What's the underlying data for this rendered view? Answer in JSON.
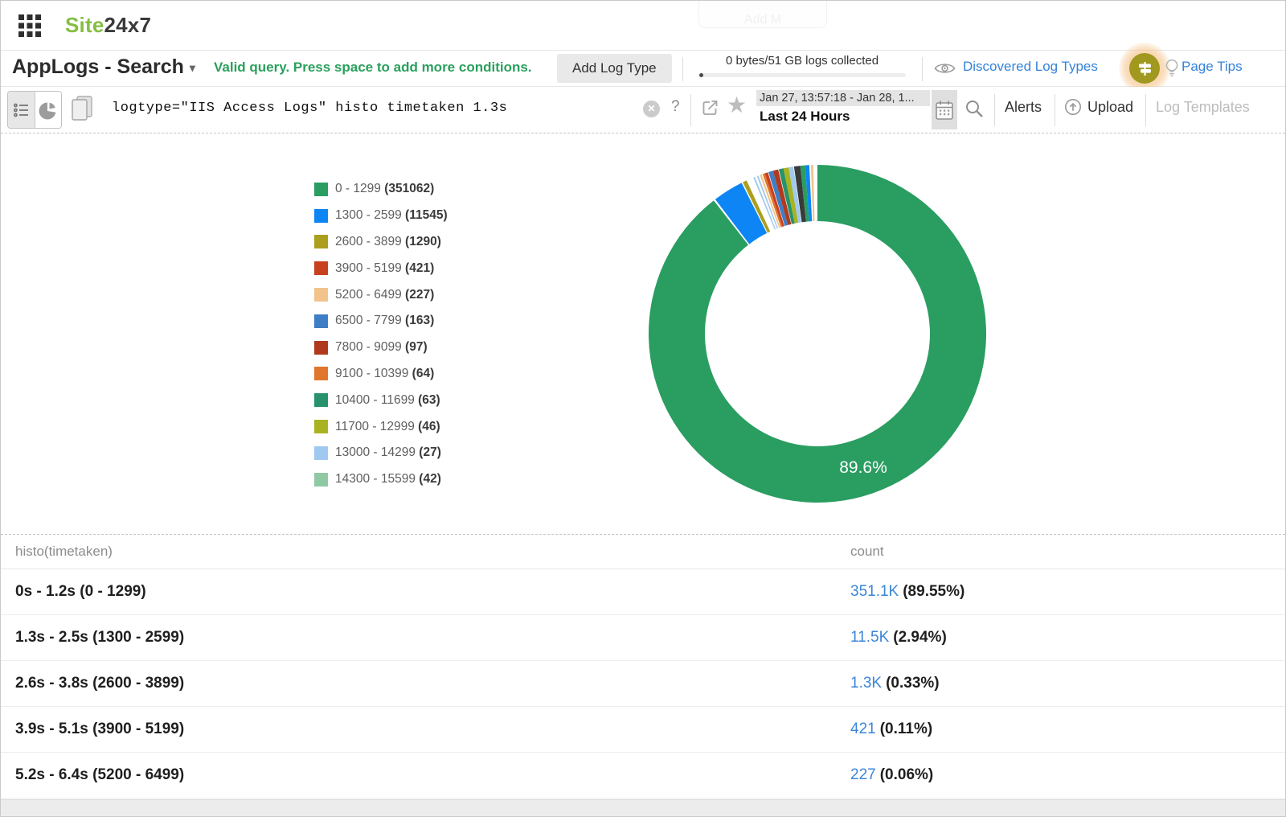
{
  "colors": {
    "brand_green": "#84bf41",
    "accent_blue": "#3584d7",
    "status_green": "#2aa05c",
    "count_link_blue": "#3a86d8"
  },
  "header": {
    "logo_part1": "Site",
    "logo_part2": "24x7",
    "ghost_tooltip": "Add M"
  },
  "page_header": {
    "title": "AppLogs - Search",
    "status_message": "Valid query. Press space to add more conditions.",
    "add_log_type_label": "Add Log Type",
    "usage_label": "0 bytes/51 GB logs collected",
    "discovered_log_types_label": "Discovered Log Types",
    "page_tips_label": "Page Tips"
  },
  "search_bar": {
    "query": "logtype=\"IIS Access Logs\" histo timetaken 1.3s",
    "help_label": "?",
    "date_range": "Jan 27, 13:57:18 - Jan 28, 1...",
    "date_preset": "Last 24 Hours",
    "alerts_label": "Alerts",
    "upload_label": "Upload",
    "log_templates_label": "Log Templates"
  },
  "chart_data": {
    "type": "pie",
    "subtype": "donut",
    "title": "histo(timetaken)",
    "donut_label": "89.6%",
    "legend_position": "left",
    "categories": [
      "0 - 1299",
      "1300 - 2599",
      "2600 - 3899",
      "3900 - 5199",
      "5200 - 6499",
      "6500 - 7799",
      "7800 - 9099",
      "9100 - 10399",
      "10400 - 11699",
      "11700 - 12999",
      "13000 - 14299",
      "14300 - 15599"
    ],
    "values": [
      351062,
      11545,
      1290,
      421,
      227,
      163,
      97,
      64,
      63,
      46,
      27,
      42
    ],
    "legend": [
      {
        "color": "#2a9d61",
        "range": "0 - 1299",
        "count": "351062"
      },
      {
        "color": "#0e85f5",
        "range": "1300 - 2599",
        "count": "11545"
      },
      {
        "color": "#ac9f1d",
        "range": "2600 - 3899",
        "count": "1290"
      },
      {
        "color": "#c7411f",
        "range": "3900 - 5199",
        "count": "421"
      },
      {
        "color": "#f2c38b",
        "range": "5200 - 6499",
        "count": "227"
      },
      {
        "color": "#3d7ec6",
        "range": "6500 - 7799",
        "count": "163"
      },
      {
        "color": "#b03a1e",
        "range": "7800 - 9099",
        "count": "97"
      },
      {
        "color": "#e0762b",
        "range": "9100 - 10399",
        "count": "64"
      },
      {
        "color": "#28926c",
        "range": "10400 - 11699",
        "count": "63"
      },
      {
        "color": "#a9b321",
        "range": "11700 - 12999",
        "count": "46"
      },
      {
        "color": "#9fc9ef",
        "range": "13000 - 14299",
        "count": "27"
      },
      {
        "color": "#8fc9a4",
        "range": "14300 - 15599",
        "count": "42"
      }
    ],
    "donut_segments": [
      {
        "color": "#2a9d61",
        "pct": 89.55
      },
      {
        "color": "#ffffff",
        "pct": 0.18
      },
      {
        "color": "#0e85f5",
        "pct": 2.94
      },
      {
        "color": "#ffffff",
        "pct": 0.12
      },
      {
        "color": "#ac9f1d",
        "pct": 0.4
      },
      {
        "color": "#ffffff",
        "pct": 0.7
      },
      {
        "color": "#9fc9ef",
        "pct": 0.15
      },
      {
        "color": "#ffffff",
        "pct": 0.2
      },
      {
        "color": "#9fc9ef",
        "pct": 0.15
      },
      {
        "color": "#ffffff",
        "pct": 0.15
      },
      {
        "color": "#f2c38b",
        "pct": 0.18
      },
      {
        "color": "#ffffff",
        "pct": 0.1
      },
      {
        "color": "#e0762b",
        "pct": 0.22
      },
      {
        "color": "#c7411f",
        "pct": 0.3
      },
      {
        "color": "#ffffff",
        "pct": 0.06
      },
      {
        "color": "#3d7ec6",
        "pct": 0.45
      },
      {
        "color": "#b03a1e",
        "pct": 0.5
      },
      {
        "color": "#ffffff",
        "pct": 0.06
      },
      {
        "color": "#28926c",
        "pct": 0.45
      },
      {
        "color": "#a9b321",
        "pct": 0.5
      },
      {
        "color": "#9fc9ef",
        "pct": 0.45
      },
      {
        "color": "#ffffff",
        "pct": 0.06
      },
      {
        "color": "#3a3a3a",
        "pct": 0.6
      },
      {
        "color": "#2a9d61",
        "pct": 0.45
      },
      {
        "color": "#0e85f5",
        "pct": 0.4
      },
      {
        "color": "#ffffff",
        "pct": 0.15
      },
      {
        "color": "#f2c38b",
        "pct": 0.22
      },
      {
        "color": "#ffffff",
        "pct": 0.4
      }
    ]
  },
  "table": {
    "columns": [
      "histo(timetaken)",
      "count"
    ],
    "rows": [
      {
        "bucket": "0s - 1.2s (0 - 1299)",
        "count": "351.1K",
        "pct": "(89.55%)"
      },
      {
        "bucket": "1.3s - 2.5s (1300 - 2599)",
        "count": "11.5K",
        "pct": "(2.94%)"
      },
      {
        "bucket": "2.6s - 3.8s (2600 - 3899)",
        "count": "1.3K",
        "pct": "(0.33%)"
      },
      {
        "bucket": "3.9s - 5.1s (3900 - 5199)",
        "count": "421",
        "pct": "(0.11%)"
      },
      {
        "bucket": "5.2s - 6.4s (5200 - 6499)",
        "count": "227",
        "pct": "(0.06%)"
      }
    ]
  }
}
